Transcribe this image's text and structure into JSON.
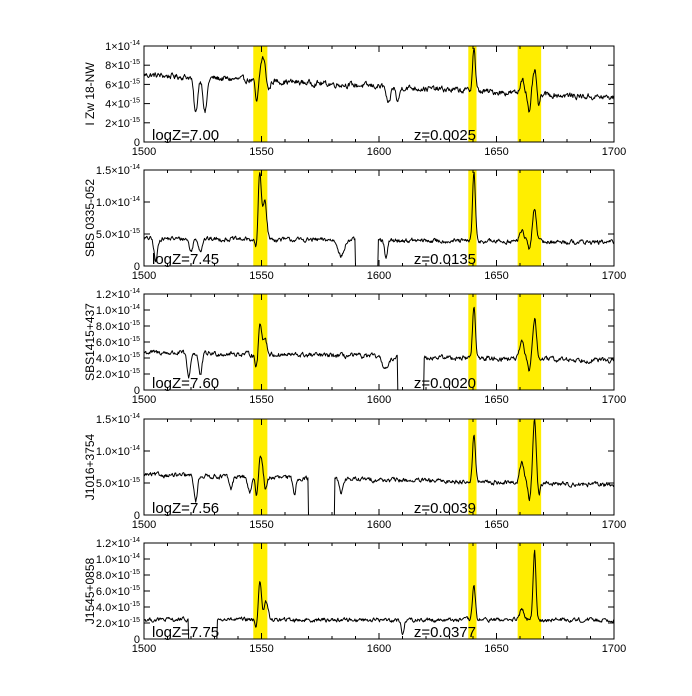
{
  "figure": {
    "background": "#ffffff",
    "highlight_color": "#ffee00",
    "line_color": "#000000"
  },
  "chart_data": [
    {
      "type": "line",
      "ylabel": "I Zw 18-NW",
      "xlim": [
        1500,
        1700
      ],
      "xticks": [
        1500,
        1550,
        1600,
        1650,
        1700
      ],
      "ylim": [
        0,
        1e-14
      ],
      "yticks": [
        {
          "m": "0",
          "e": ""
        },
        {
          "m": "2×10",
          "e": "-15"
        },
        {
          "m": "4×10",
          "e": "-15"
        },
        {
          "m": "6×10",
          "e": "-15"
        },
        {
          "m": "8×10",
          "e": "-15"
        },
        {
          "m": "1×10",
          "e": "-14"
        }
      ],
      "ytick_values": [
        0,
        2e-15,
        4e-15,
        6e-15,
        8e-15,
        1e-14
      ],
      "annotation_left": "logZ=7.00",
      "annotation_right": "z=0.0025",
      "highlight_bands": [
        [
          1546.5,
          1552.5
        ],
        [
          1638,
          1641.5
        ],
        [
          1659,
          1669
        ]
      ],
      "continuum": 7e-15,
      "slope": -1.2e-17,
      "noise": 3.5e-16,
      "features": [
        {
          "x": 1522,
          "w": 0.8,
          "a": -3.8e-15
        },
        {
          "x": 1526,
          "w": 0.8,
          "a": -3.6e-15
        },
        {
          "x": 1548,
          "w": 0.6,
          "a": -2.5e-15
        },
        {
          "x": 1550.6,
          "w": 1.0,
          "a": 2.4e-15
        },
        {
          "x": 1553,
          "w": 0.7,
          "a": -1e-15
        },
        {
          "x": 1604,
          "w": 0.8,
          "a": -2e-15
        },
        {
          "x": 1608,
          "w": 0.7,
          "a": -1.5e-15
        },
        {
          "x": 1640.4,
          "w": 0.6,
          "a": 4.5e-15
        },
        {
          "x": 1661,
          "w": 0.8,
          "a": 1.6e-15
        },
        {
          "x": 1664,
          "w": 0.6,
          "a": -2.2e-15
        },
        {
          "x": 1666.2,
          "w": 0.8,
          "a": 2.4e-15
        },
        {
          "x": 1668,
          "w": 0.6,
          "a": -1.4e-15
        }
      ],
      "gaps": []
    },
    {
      "type": "line",
      "ylabel": "SBS 0335-052",
      "xlim": [
        1500,
        1700
      ],
      "xticks": [
        1500,
        1550,
        1600,
        1650,
        1700
      ],
      "ylim": [
        0,
        1.5e-14
      ],
      "yticks": [
        {
          "m": "0",
          "e": ""
        },
        {
          "m": "5.0×10",
          "e": "-15"
        },
        {
          "m": "1.0×10",
          "e": "-14"
        },
        {
          "m": "1.5×10",
          "e": "-14"
        }
      ],
      "ytick_values": [
        0,
        5e-15,
        1e-14,
        1.5e-14
      ],
      "annotation_left": "logZ=7.45",
      "annotation_right": "z=0.0135",
      "highlight_bands": [
        [
          1546.5,
          1552.5
        ],
        [
          1638,
          1641.5
        ],
        [
          1659,
          1669
        ]
      ],
      "continuum": 4.3e-15,
      "slope": -3e-18,
      "noise": 4e-16,
      "features": [
        {
          "x": 1505,
          "w": 0.7,
          "a": -3.6e-15
        },
        {
          "x": 1520,
          "w": 0.7,
          "a": -2e-15
        },
        {
          "x": 1524,
          "w": 0.7,
          "a": -1.8e-15
        },
        {
          "x": 1548,
          "w": 0.6,
          "a": -2.5e-15
        },
        {
          "x": 1549.2,
          "w": 0.7,
          "a": 1.05e-14
        },
        {
          "x": 1551.4,
          "w": 0.8,
          "a": 6.2e-15
        },
        {
          "x": 1640.4,
          "w": 0.6,
          "a": 1.06e-14
        },
        {
          "x": 1660.8,
          "w": 0.9,
          "a": 1.8e-15
        },
        {
          "x": 1664,
          "w": 0.6,
          "a": -1.2e-15
        },
        {
          "x": 1666.2,
          "w": 0.8,
          "a": 5.2e-15
        }
      ],
      "gaps": [
        [
          1590,
          1599.5
        ]
      ],
      "extra_dips": [
        {
          "x": 1584,
          "w": 1.2,
          "a": -2.5e-15
        },
        {
          "x": 1603,
          "w": 0.6,
          "a": -3e-15
        }
      ]
    },
    {
      "type": "line",
      "ylabel": "SBS1415+437",
      "xlim": [
        1500,
        1700
      ],
      "xticks": [
        1500,
        1550,
        1600,
        1650,
        1700
      ],
      "ylim": [
        0,
        1.2e-14
      ],
      "yticks": [
        {
          "m": "0",
          "e": ""
        },
        {
          "m": "2.0×10",
          "e": "-15"
        },
        {
          "m": "4.0×10",
          "e": "-15"
        },
        {
          "m": "6.0×10",
          "e": "-15"
        },
        {
          "m": "8.0×10",
          "e": "-15"
        },
        {
          "m": "1.0×10",
          "e": "-14"
        },
        {
          "m": "1.2×10",
          "e": "-14"
        }
      ],
      "ytick_values": [
        0,
        2e-15,
        4e-15,
        6e-15,
        8e-15,
        1e-14,
        1.2e-14
      ],
      "annotation_left": "logZ=7.60",
      "annotation_right": "z=0.0020",
      "highlight_bands": [
        [
          1546.5,
          1552.5
        ],
        [
          1638,
          1641.5
        ],
        [
          1659,
          1669
        ]
      ],
      "continuum": 4.7e-15,
      "slope": -5e-18,
      "noise": 3.5e-16,
      "features": [
        {
          "x": 1519,
          "w": 0.7,
          "a": -3e-15
        },
        {
          "x": 1524,
          "w": 0.7,
          "a": -2.8e-15
        },
        {
          "x": 1548,
          "w": 0.6,
          "a": -2.2e-15
        },
        {
          "x": 1549.4,
          "w": 0.8,
          "a": 4e-15
        },
        {
          "x": 1551.6,
          "w": 0.7,
          "a": 2e-15
        },
        {
          "x": 1640.4,
          "w": 0.6,
          "a": 6.4e-15
        },
        {
          "x": 1660.8,
          "w": 0.9,
          "a": 2e-15
        },
        {
          "x": 1664,
          "w": 0.6,
          "a": -1.5e-15
        },
        {
          "x": 1666.2,
          "w": 0.8,
          "a": 5e-15
        }
      ],
      "gaps": [
        [
          1608,
          1619
        ]
      ],
      "extra_dips": [
        {
          "x": 1603,
          "w": 1.5,
          "a": -1.5e-15
        }
      ]
    },
    {
      "type": "line",
      "ylabel": "J1016+3754",
      "xlim": [
        1500,
        1700
      ],
      "xticks": [
        1500,
        1550,
        1600,
        1650,
        1700
      ],
      "ylim": [
        0,
        1.5e-14
      ],
      "yticks": [
        {
          "m": "0",
          "e": ""
        },
        {
          "m": "5.0×10",
          "e": "-15"
        },
        {
          "m": "1.0×10",
          "e": "-14"
        },
        {
          "m": "1.5×10",
          "e": "-14"
        }
      ],
      "ytick_values": [
        0,
        5e-15,
        1e-14,
        1.5e-14
      ],
      "annotation_left": "logZ=7.56",
      "annotation_right": "z=0.0039",
      "highlight_bands": [
        [
          1546.5,
          1552.5
        ],
        [
          1638,
          1641.5
        ],
        [
          1659,
          1669
        ]
      ],
      "continuum": 6.3e-15,
      "slope": -8e-18,
      "noise": 4e-16,
      "features": [
        {
          "x": 1522,
          "w": 0.7,
          "a": -4e-15
        },
        {
          "x": 1537,
          "w": 0.7,
          "a": -2e-15
        },
        {
          "x": 1545,
          "w": 0.8,
          "a": -2.5e-15
        },
        {
          "x": 1548,
          "w": 0.6,
          "a": -3e-15
        },
        {
          "x": 1549.6,
          "w": 0.8,
          "a": 3.5e-15
        },
        {
          "x": 1551.8,
          "w": 0.6,
          "a": -2e-15
        },
        {
          "x": 1564,
          "w": 0.6,
          "a": -2.5e-15
        },
        {
          "x": 1640.4,
          "w": 0.6,
          "a": 7.5e-15
        },
        {
          "x": 1660.8,
          "w": 0.9,
          "a": 3.2e-15
        },
        {
          "x": 1664,
          "w": 0.6,
          "a": -2.6e-15
        },
        {
          "x": 1666.2,
          "w": 0.7,
          "a": 1e-14
        },
        {
          "x": 1668,
          "w": 0.6,
          "a": -1.8e-15
        }
      ],
      "gaps": [
        [
          1570,
          1581
        ]
      ],
      "extra_dips": [
        {
          "x": 1584,
          "w": 0.7,
          "a": -2e-15
        }
      ]
    },
    {
      "type": "line",
      "ylabel": "J1545+0858",
      "xlim": [
        1500,
        1700
      ],
      "xticks": [
        1500,
        1550,
        1600,
        1650,
        1700
      ],
      "ylim": [
        0,
        1.2e-14
      ],
      "yticks": [
        {
          "m": "0",
          "e": ""
        },
        {
          "m": "2.0×10",
          "e": "-15"
        },
        {
          "m": "4.0×10",
          "e": "-15"
        },
        {
          "m": "6.0×10",
          "e": "-15"
        },
        {
          "m": "8.0×10",
          "e": "-15"
        },
        {
          "m": "1.0×10",
          "e": "-14"
        },
        {
          "m": "1.2×10",
          "e": "-14"
        }
      ],
      "ytick_values": [
        0,
        2e-15,
        4e-15,
        6e-15,
        8e-15,
        1e-14,
        1.2e-14
      ],
      "annotation_left": "logZ=7.75",
      "annotation_right": "z=0.0377",
      "highlight_bands": [
        [
          1546.5,
          1552.5
        ],
        [
          1638,
          1641.5
        ],
        [
          1659,
          1669
        ]
      ],
      "continuum": 2.4e-15,
      "slope": 0,
      "noise": 3e-16,
      "features": [
        {
          "x": 1548,
          "w": 0.6,
          "a": -1.2e-15
        },
        {
          "x": 1549.3,
          "w": 0.7,
          "a": 5e-15
        },
        {
          "x": 1552,
          "w": 0.8,
          "a": 2.2e-15
        },
        {
          "x": 1610,
          "w": 0.6,
          "a": -1.8e-15
        },
        {
          "x": 1640.4,
          "w": 0.6,
          "a": 4.3e-15
        },
        {
          "x": 1660.8,
          "w": 0.8,
          "a": 1.4e-15
        },
        {
          "x": 1666.2,
          "w": 0.6,
          "a": 8.5e-15
        }
      ],
      "gaps": [
        [
          1519,
          1531
        ]
      ],
      "extra_dips": []
    }
  ]
}
